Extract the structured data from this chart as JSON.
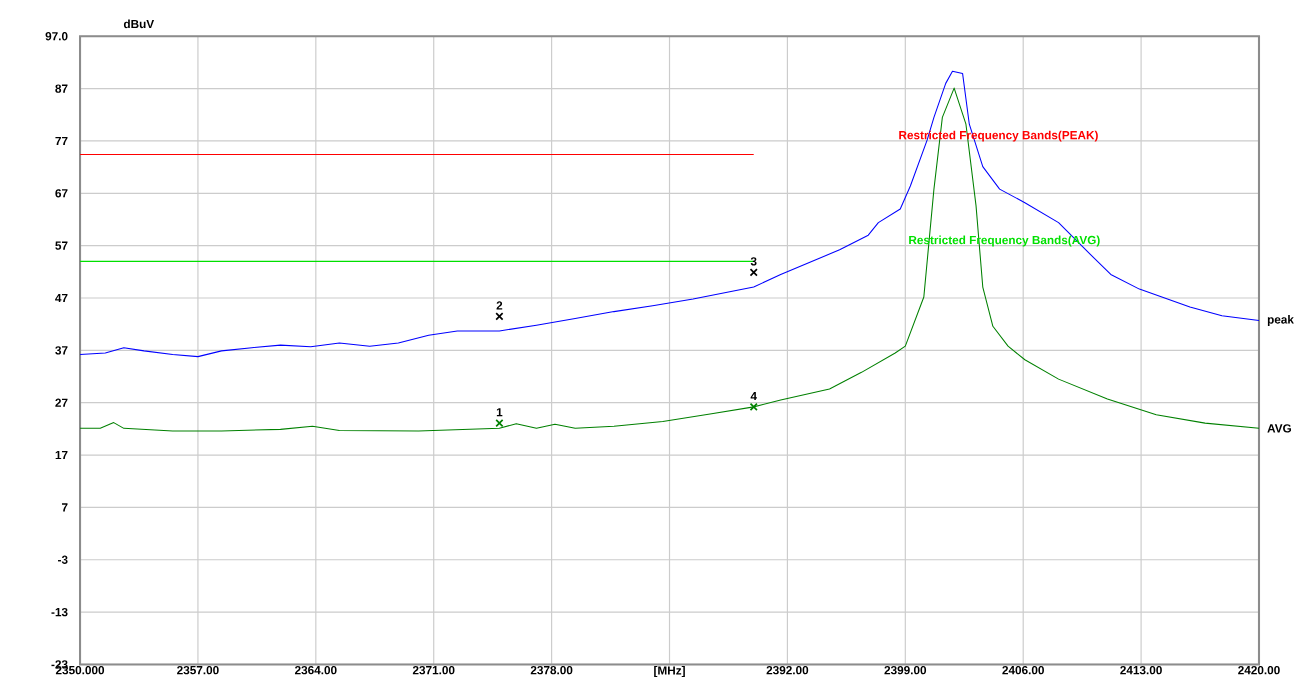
{
  "chart_data": {
    "type": "line",
    "ylabel": "dBuV",
    "xlim": [
      2350,
      2420
    ],
    "ylim": [
      -23,
      97
    ],
    "xticks": [
      {
        "value": 2350,
        "label": "2350.000"
      },
      {
        "value": 2357,
        "label": "2357.00"
      },
      {
        "value": 2364,
        "label": "2364.00"
      },
      {
        "value": 2371,
        "label": "2371.00"
      },
      {
        "value": 2378,
        "label": "2378.00"
      },
      {
        "value": 2385,
        "label": "[MHz]"
      },
      {
        "value": 2392,
        "label": "2392.00"
      },
      {
        "value": 2399,
        "label": "2399.00"
      },
      {
        "value": 2406,
        "label": "2406.00"
      },
      {
        "value": 2413,
        "label": "2413.00"
      },
      {
        "value": 2420,
        "label": "2420.00"
      }
    ],
    "yticks": [
      -23,
      -13,
      -3,
      7,
      17,
      27,
      37,
      47,
      57,
      67,
      77,
      87,
      {
        "value": 97,
        "label": "97.0"
      }
    ],
    "grid": true,
    "line_style": "solid",
    "series": [
      {
        "name": "peak",
        "color": "#0000ff",
        "x": [
          2350.0,
          2351.5,
          2352.6,
          2353.8,
          2355.5,
          2357.0,
          2358.4,
          2360.2,
          2361.9,
          2363.7,
          2365.4,
          2367.2,
          2368.9,
          2370.7,
          2372.4,
          2374.9,
          2377.1,
          2379.4,
          2381.7,
          2384.0,
          2386.4,
          2390.0,
          2391.6,
          2393.3,
          2395.1,
          2396.8,
          2397.4,
          2398.7,
          2399.3,
          2400.3,
          2400.7,
          2401.4,
          2401.8,
          2402.4,
          2402.8,
          2403.6,
          2404.6,
          2406.1,
          2408.1,
          2410.0,
          2411.2,
          2412.9,
          2415.9,
          2417.8,
          2420.0
        ],
        "values": [
          36.2,
          36.5,
          37.5,
          36.9,
          36.2,
          35.8,
          36.9,
          37.5,
          38.0,
          37.7,
          38.4,
          37.8,
          38.4,
          39.9,
          40.7,
          40.7,
          41.8,
          43.1,
          44.4,
          45.5,
          46.8,
          49.1,
          51.5,
          53.8,
          56.2,
          59.0,
          61.4,
          64.0,
          68.4,
          77.2,
          81.5,
          88.0,
          90.3,
          89.9,
          80.2,
          72.1,
          67.8,
          65.2,
          61.4,
          55.3,
          51.5,
          48.7,
          45.3,
          43.6,
          42.7
        ]
      },
      {
        "name": "AVG",
        "color": "#008000",
        "x": [
          2350.0,
          2351.2,
          2352.0,
          2352.6,
          2355.5,
          2358.4,
          2361.9,
          2363.8,
          2365.4,
          2370.1,
          2374.9,
          2375.9,
          2377.1,
          2378.2,
          2379.4,
          2381.7,
          2384.6,
          2387.5,
          2390.0,
          2391.6,
          2394.5,
          2396.4,
          2398.4,
          2399.0,
          2400.1,
          2400.7,
          2401.2,
          2401.9,
          2402.6,
          2403.2,
          2403.6,
          2404.2,
          2405.1,
          2406.1,
          2408.1,
          2411.0,
          2413.9,
          2416.8,
          2420.0
        ],
        "values": [
          22.1,
          22.1,
          23.2,
          22.1,
          21.6,
          21.6,
          21.9,
          22.5,
          21.7,
          21.6,
          22.1,
          23.0,
          22.1,
          22.9,
          22.1,
          22.5,
          23.4,
          24.9,
          26.2,
          27.5,
          29.6,
          32.8,
          36.5,
          37.8,
          47.2,
          67.8,
          81.5,
          87.1,
          80.2,
          64.6,
          49.1,
          41.6,
          37.8,
          35.2,
          31.5,
          27.7,
          24.7,
          23.1,
          22.1
        ]
      },
      {
        "color": "#ff0000",
        "x": [
          2350,
          2390
        ],
        "values": [
          74.4,
          74.4
        ]
      },
      {
        "color": "#00e000",
        "x": [
          2350,
          2390
        ],
        "values": [
          54.0,
          54.0
        ]
      },
      {
        "name": "1",
        "type": "scatter",
        "marker": "cross",
        "color": "#008000",
        "x": [
          2374.9
        ],
        "values": [
          23.1
        ]
      },
      {
        "name": "2",
        "type": "scatter",
        "marker": "cross",
        "color": "#000000",
        "x": [
          2374.9
        ],
        "values": [
          43.5
        ]
      },
      {
        "name": "3",
        "type": "scatter",
        "marker": "cross",
        "color": "#000000",
        "x": [
          2390.0
        ],
        "values": [
          51.9
        ]
      },
      {
        "name": "4",
        "type": "scatter",
        "marker": "cross",
        "color": "#008000",
        "x": [
          2390.0
        ],
        "values": [
          26.2
        ]
      }
    ],
    "annotations": [
      "Restricted Frequency Bands(PEAK)",
      "Restricted Frequency Bands(AVG)"
    ]
  }
}
